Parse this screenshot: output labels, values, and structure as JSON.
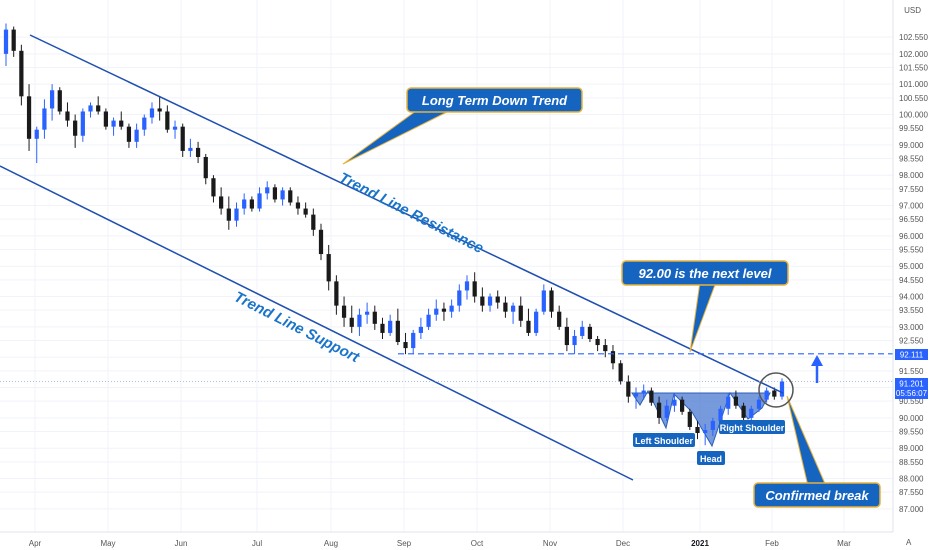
{
  "chart_data": {
    "type": "candlestick",
    "currency": "USD",
    "y_axis": {
      "ticks": [
        "102.550",
        "102.000",
        "101.550",
        "101.000",
        "100.550",
        "100.000",
        "99.550",
        "99.000",
        "98.550",
        "98.000",
        "97.550",
        "97.000",
        "96.550",
        "96.000",
        "95.550",
        "95.000",
        "94.550",
        "94.000",
        "93.550",
        "93.000",
        "92.550",
        "92.000",
        "91.550",
        "91.000",
        "90.550",
        "90.000",
        "89.550",
        "89.000",
        "88.550",
        "88.000",
        "87.550",
        "87.000"
      ],
      "ylim": [
        86.6,
        103.05
      ]
    },
    "x_axis": {
      "ticks": [
        "Apr",
        "May",
        "Jun",
        "Jul",
        "Aug",
        "Sep",
        "Oct",
        "Nov",
        "Dec",
        "2021",
        "Feb",
        "Mar"
      ],
      "bold_ticks": [
        "2021"
      ]
    },
    "price_labels": {
      "level": "92.111",
      "last": "91.201",
      "countdown": "05:56:07"
    },
    "levels": [
      92.111,
      91.201
    ],
    "candles": [
      [
        102.0,
        103.0,
        101.6,
        102.8
      ],
      [
        102.8,
        102.9,
        101.9,
        102.1
      ],
      [
        102.1,
        102.3,
        100.3,
        100.6
      ],
      [
        100.6,
        101.0,
        98.8,
        99.2
      ],
      [
        99.2,
        99.6,
        98.4,
        99.5
      ],
      [
        99.5,
        100.5,
        99.2,
        100.2
      ],
      [
        100.2,
        101.0,
        99.8,
        100.8
      ],
      [
        100.8,
        100.9,
        100.0,
        100.1
      ],
      [
        100.1,
        100.4,
        99.6,
        99.8
      ],
      [
        99.8,
        100.0,
        98.9,
        99.3
      ],
      [
        99.3,
        100.2,
        99.1,
        100.1
      ],
      [
        100.1,
        100.4,
        99.9,
        100.3
      ],
      [
        100.3,
        100.6,
        100.0,
        100.1
      ],
      [
        100.1,
        100.2,
        99.5,
        99.6
      ],
      [
        99.6,
        99.9,
        99.3,
        99.8
      ],
      [
        99.8,
        100.1,
        99.5,
        99.6
      ],
      [
        99.6,
        99.7,
        98.9,
        99.1
      ],
      [
        99.1,
        99.7,
        98.9,
        99.5
      ],
      [
        99.5,
        100.0,
        99.3,
        99.9
      ],
      [
        99.9,
        100.4,
        99.7,
        100.2
      ],
      [
        100.2,
        100.6,
        99.8,
        100.1
      ],
      [
        100.1,
        100.3,
        99.4,
        99.5
      ],
      [
        99.5,
        99.8,
        99.2,
        99.6
      ],
      [
        99.6,
        99.7,
        98.6,
        98.8
      ],
      [
        98.8,
        99.2,
        98.6,
        98.9
      ],
      [
        98.9,
        99.1,
        98.4,
        98.6
      ],
      [
        98.6,
        98.7,
        97.7,
        97.9
      ],
      [
        97.9,
        98.0,
        97.1,
        97.3
      ],
      [
        97.3,
        97.6,
        96.7,
        96.9
      ],
      [
        96.9,
        97.3,
        96.2,
        96.5
      ],
      [
        96.5,
        97.1,
        96.3,
        96.9
      ],
      [
        96.9,
        97.4,
        96.7,
        97.2
      ],
      [
        97.2,
        97.3,
        96.8,
        96.9
      ],
      [
        96.9,
        97.6,
        96.8,
        97.4
      ],
      [
        97.4,
        97.8,
        97.2,
        97.6
      ],
      [
        97.6,
        97.7,
        97.1,
        97.2
      ],
      [
        97.2,
        97.6,
        97.0,
        97.5
      ],
      [
        97.5,
        97.6,
        97.0,
        97.1
      ],
      [
        97.1,
        97.3,
        96.7,
        96.9
      ],
      [
        96.9,
        97.1,
        96.6,
        96.7
      ],
      [
        96.7,
        96.9,
        96.0,
        96.2
      ],
      [
        96.2,
        96.4,
        95.2,
        95.4
      ],
      [
        95.4,
        95.7,
        94.2,
        94.5
      ],
      [
        94.5,
        94.7,
        93.4,
        93.7
      ],
      [
        93.7,
        94.0,
        93.0,
        93.3
      ],
      [
        93.3,
        93.7,
        92.8,
        93.0
      ],
      [
        93.0,
        93.6,
        92.7,
        93.4
      ],
      [
        93.4,
        93.8,
        93.1,
        93.5
      ],
      [
        93.5,
        93.7,
        92.9,
        93.1
      ],
      [
        93.1,
        93.3,
        92.6,
        92.8
      ],
      [
        92.8,
        93.4,
        92.7,
        93.2
      ],
      [
        93.2,
        93.6,
        92.4,
        92.5
      ],
      [
        92.5,
        92.8,
        92.1,
        92.3
      ],
      [
        92.3,
        92.9,
        92.1,
        92.8
      ],
      [
        92.8,
        93.3,
        92.6,
        93.0
      ],
      [
        93.0,
        93.6,
        92.9,
        93.4
      ],
      [
        93.4,
        93.9,
        93.2,
        93.6
      ],
      [
        93.6,
        93.8,
        93.2,
        93.5
      ],
      [
        93.5,
        93.9,
        93.3,
        93.7
      ],
      [
        93.7,
        94.4,
        93.5,
        94.2
      ],
      [
        94.2,
        94.7,
        93.9,
        94.5
      ],
      [
        94.5,
        94.8,
        93.8,
        94.0
      ],
      [
        94.0,
        94.3,
        93.5,
        93.7
      ],
      [
        93.7,
        94.1,
        93.5,
        94.0
      ],
      [
        94.0,
        94.2,
        93.6,
        93.8
      ],
      [
        93.8,
        94.0,
        93.3,
        93.5
      ],
      [
        93.5,
        93.8,
        93.1,
        93.7
      ],
      [
        93.7,
        94.0,
        93.0,
        93.2
      ],
      [
        93.2,
        93.6,
        92.7,
        92.8
      ],
      [
        92.8,
        93.6,
        92.7,
        93.5
      ],
      [
        93.5,
        94.4,
        93.4,
        94.2
      ],
      [
        94.2,
        94.3,
        93.3,
        93.5
      ],
      [
        93.5,
        93.7,
        92.9,
        93.0
      ],
      [
        93.0,
        93.3,
        92.2,
        92.4
      ],
      [
        92.4,
        92.9,
        92.1,
        92.7
      ],
      [
        92.7,
        93.2,
        92.6,
        93.0
      ],
      [
        93.0,
        93.1,
        92.5,
        92.6
      ],
      [
        92.6,
        92.7,
        92.2,
        92.4
      ],
      [
        92.4,
        92.6,
        92.0,
        92.2
      ],
      [
        92.2,
        92.4,
        91.6,
        91.8
      ],
      [
        91.8,
        91.9,
        91.1,
        91.2
      ],
      [
        91.2,
        91.4,
        90.5,
        90.7
      ],
      [
        90.7,
        91.0,
        90.3,
        90.8
      ],
      [
        90.8,
        91.1,
        90.6,
        90.9
      ],
      [
        90.9,
        91.0,
        90.4,
        90.5
      ],
      [
        90.5,
        90.7,
        89.8,
        90.0
      ],
      [
        90.0,
        90.6,
        89.9,
        90.4
      ],
      [
        90.4,
        90.8,
        90.2,
        90.6
      ],
      [
        90.6,
        90.7,
        90.1,
        90.2
      ],
      [
        90.2,
        90.3,
        89.6,
        89.7
      ],
      [
        89.7,
        89.9,
        89.3,
        89.5
      ],
      [
        89.5,
        89.8,
        89.1,
        89.6
      ],
      [
        89.6,
        90.0,
        89.4,
        89.9
      ],
      [
        89.9,
        90.4,
        89.7,
        90.3
      ],
      [
        90.3,
        90.8,
        90.1,
        90.7
      ],
      [
        90.7,
        90.9,
        90.3,
        90.4
      ],
      [
        90.4,
        90.5,
        89.9,
        90.0
      ],
      [
        90.0,
        90.4,
        89.9,
        90.3
      ],
      [
        90.3,
        90.7,
        90.2,
        90.6
      ],
      [
        90.6,
        91.0,
        90.5,
        90.9
      ],
      [
        90.9,
        91.0,
        90.6,
        90.7
      ],
      [
        90.7,
        91.3,
        90.6,
        91.2
      ]
    ],
    "annotations": {
      "long_term": "Long Term Down Trend",
      "resistance": "Trend Line Resistance",
      "support": "Trend Line Support",
      "next_level": "92.00 is the next level",
      "confirmed": "Confirmed break",
      "left_shoulder": "Left Shoulder",
      "head": "Head",
      "right_shoulder": "Right Shoulder"
    },
    "colors": {
      "up": "#2962ff",
      "down": "#1a1a1a",
      "trend": "#1f4fb0",
      "callout_fill": "#1565c0",
      "callout_border": "#e8b23a",
      "pattern_fill": "#4a78d0",
      "level": "#2962ff"
    }
  }
}
